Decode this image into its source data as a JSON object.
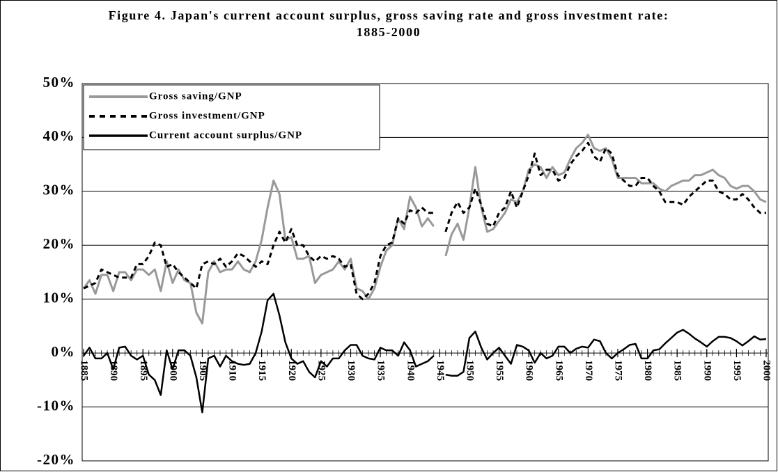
{
  "chart_data": {
    "type": "line",
    "title": "Figure 4. Japan's current account surplus, gross saving rate and gross investment rate: 1885-2000",
    "x": [
      1885,
      1886,
      1887,
      1888,
      1889,
      1890,
      1891,
      1892,
      1893,
      1894,
      1895,
      1896,
      1897,
      1898,
      1899,
      1900,
      1901,
      1902,
      1903,
      1904,
      1905,
      1906,
      1907,
      1908,
      1909,
      1910,
      1911,
      1912,
      1913,
      1914,
      1915,
      1916,
      1917,
      1918,
      1919,
      1920,
      1921,
      1922,
      1923,
      1924,
      1925,
      1926,
      1927,
      1928,
      1929,
      1930,
      1931,
      1932,
      1933,
      1934,
      1935,
      1936,
      1937,
      1938,
      1939,
      1940,
      1941,
      1942,
      1943,
      1944,
      1945,
      1946,
      1947,
      1948,
      1949,
      1950,
      1951,
      1952,
      1953,
      1954,
      1955,
      1956,
      1957,
      1958,
      1959,
      1960,
      1961,
      1962,
      1963,
      1964,
      1965,
      1966,
      1967,
      1968,
      1969,
      1970,
      1971,
      1972,
      1973,
      1974,
      1975,
      1976,
      1977,
      1978,
      1979,
      1980,
      1981,
      1982,
      1983,
      1984,
      1985,
      1986,
      1987,
      1988,
      1989,
      1990,
      1991,
      1992,
      1993,
      1994,
      1995,
      1996,
      1997,
      1998,
      1999,
      2000
    ],
    "series": [
      {
        "name": "Gross saving/GNP",
        "color": "#999999",
        "dash": false,
        "width": 3,
        "values": [
          12,
          13.5,
          11,
          14.5,
          14.5,
          11.5,
          15,
          15,
          13.5,
          15.5,
          15.5,
          14.5,
          15.5,
          11.5,
          17,
          13,
          15.5,
          13.5,
          13,
          7.5,
          5.5,
          15,
          17,
          15,
          15.5,
          15.5,
          17,
          15.5,
          15,
          17,
          21,
          27,
          32,
          29.5,
          21,
          21.5,
          17.5,
          17.5,
          18,
          13,
          14.5,
          15,
          15.5,
          17,
          15.5,
          17.5,
          12,
          11.5,
          10,
          12,
          16,
          19,
          20,
          25,
          23,
          29,
          27,
          23.5,
          25,
          23.5,
          null,
          18,
          22,
          24,
          21,
          27,
          34.5,
          27,
          22.5,
          23,
          24.5,
          26,
          28.5,
          28,
          30,
          34,
          35,
          34.5,
          32.5,
          34.5,
          33,
          33.5,
          36,
          38,
          39,
          40.5,
          38,
          37.5,
          38,
          36,
          32.5,
          32.5,
          32.5,
          32.5,
          31.5,
          31.5,
          31.5,
          30.5,
          30,
          31,
          31.5,
          32,
          32,
          33,
          33,
          33.5,
          34,
          33,
          32.5,
          31,
          30.5,
          31,
          31,
          30,
          28.5,
          28
        ]
      },
      {
        "name": "Gross investment/GNP",
        "color": "#000000",
        "dash": true,
        "width": 3,
        "values": [
          12,
          12.5,
          13,
          15.5,
          15,
          14.5,
          14,
          14,
          14,
          16.5,
          16.5,
          18,
          20.5,
          20,
          16,
          16.5,
          15,
          14,
          13,
          12,
          16.5,
          17,
          16.5,
          17.5,
          16,
          17,
          18.5,
          18,
          17,
          16,
          17,
          16.5,
          20,
          22.5,
          20.5,
          23,
          20,
          20,
          18,
          17,
          18,
          17.5,
          18,
          17.5,
          16,
          16.5,
          11,
          10,
          11,
          13,
          18,
          20,
          20.5,
          25,
          24,
          26.5,
          26,
          27,
          26,
          26,
          null,
          22.5,
          26,
          28,
          26,
          27,
          30.5,
          27.5,
          24,
          23.5,
          26,
          27,
          30,
          27,
          30,
          33,
          37,
          33,
          34,
          34,
          32,
          32.5,
          35,
          36.5,
          37.5,
          39,
          36.5,
          35.5,
          38,
          37,
          33,
          32,
          31,
          31,
          32.5,
          32.5,
          31,
          30,
          28,
          28,
          28,
          27.5,
          29,
          30,
          31,
          32,
          32,
          30,
          29.5,
          28.5,
          28.5,
          29.5,
          28.5,
          27,
          26,
          26
        ]
      },
      {
        "name": "Current account surplus/GNP",
        "color": "#000000",
        "dash": false,
        "width": 2.5,
        "values": [
          -0.5,
          1,
          -1,
          -1,
          0,
          -3,
          1,
          1.2,
          -0.5,
          -1.2,
          -0.5,
          -4,
          -5,
          -7.8,
          0.5,
          -3,
          0.5,
          0.5,
          -0.5,
          -4.5,
          -11,
          -1,
          -0.5,
          -2.5,
          -0.5,
          -1.5,
          -2,
          -2.2,
          -2,
          0,
          4,
          9.8,
          11,
          7,
          2,
          -1,
          -2,
          -1.5,
          -3.5,
          -4.5,
          -1.5,
          -2.5,
          -1,
          -1,
          0.5,
          1.5,
          1.5,
          -0.5,
          -1,
          -1.2,
          1,
          0.5,
          0.5,
          -0.5,
          2,
          0.5,
          -2.5,
          -2,
          -1.5,
          -0.5,
          null,
          -4,
          -4.2,
          -4.2,
          -3.5,
          2.8,
          4,
          1,
          -1.2,
          0,
          1,
          -0.5,
          -2,
          1.5,
          1.2,
          0.5,
          -1.8,
          0,
          -1,
          -0.5,
          1.2,
          1.2,
          0,
          0.8,
          1.2,
          1,
          2.5,
          2.2,
          0,
          -1,
          0,
          0.7,
          1.5,
          1.7,
          -1,
          -1,
          0.5,
          0.7,
          1.8,
          2.8,
          3.8,
          4.3,
          3.6,
          2.7,
          2,
          1.2,
          2.2,
          3,
          3,
          2.8,
          2.2,
          1.4,
          2.2,
          3.1,
          2.5,
          2.6
        ]
      }
    ],
    "xlim": [
      1885,
      2000
    ],
    "xticks": [
      1885,
      1890,
      1895,
      1900,
      1905,
      1910,
      1915,
      1920,
      1925,
      1930,
      1935,
      1940,
      1945,
      1950,
      1955,
      1960,
      1965,
      1970,
      1975,
      1980,
      1985,
      1990,
      1995,
      2000
    ],
    "ylim": [
      -20,
      50
    ],
    "yticks": [
      {
        "value": -20,
        "label": "-20%"
      },
      {
        "value": -10,
        "label": "-10%"
      },
      {
        "value": 0,
        "label": "0%"
      },
      {
        "value": 10,
        "label": "10%"
      },
      {
        "value": 20,
        "label": "20%"
      },
      {
        "value": 30,
        "label": "30%"
      },
      {
        "value": 40,
        "label": "40%"
      },
      {
        "value": 50,
        "label": "50%"
      }
    ],
    "grid": true,
    "legend": "upper left"
  }
}
